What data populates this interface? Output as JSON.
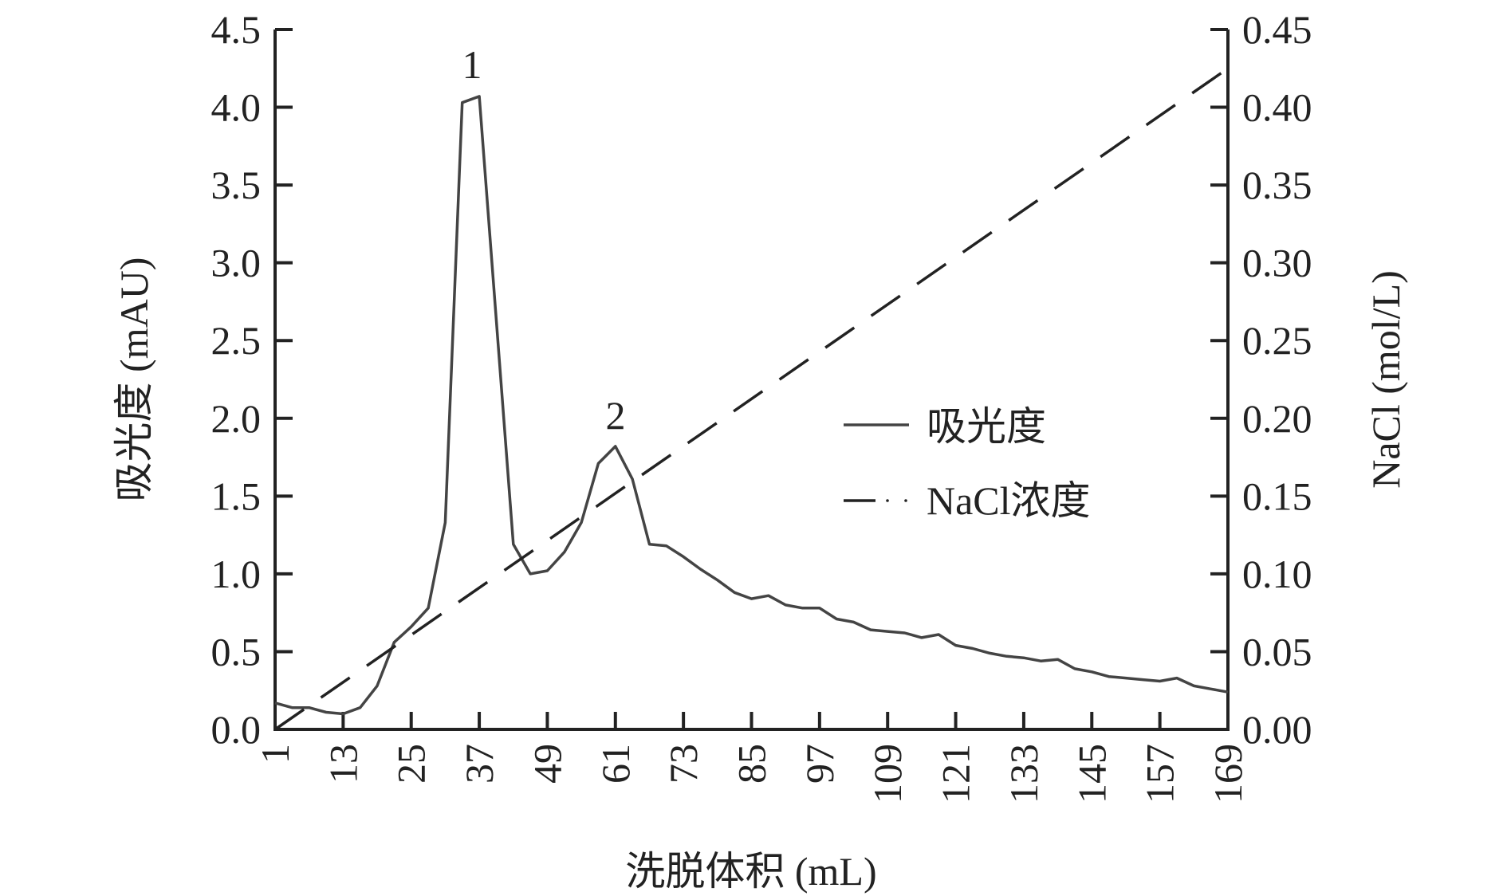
{
  "chart_data": {
    "type": "line",
    "title": "",
    "xlabel": "洗脱体积 (mL)",
    "ylabel": "吸光度 (mAU)",
    "y2label": "NaCl (mol/L)",
    "xlim": [
      1,
      169
    ],
    "ylim": [
      0,
      4.5
    ],
    "y2lim": [
      0,
      0.45
    ],
    "xticks": [
      1,
      13,
      25,
      37,
      49,
      61,
      73,
      85,
      97,
      109,
      121,
      133,
      145,
      157,
      169
    ],
    "yticks": [
      "0.0",
      "0.5",
      "1.0",
      "1.5",
      "2.0",
      "2.5",
      "3.0",
      "3.5",
      "4.0",
      "4.5"
    ],
    "y2ticks": [
      "0.00",
      "0.05",
      "0.10",
      "0.15",
      "0.20",
      "0.25",
      "0.30",
      "0.35",
      "0.40",
      "0.45"
    ],
    "grid": false,
    "legend": {
      "placement": "center-right",
      "entries": [
        "吸光度",
        "NaCl浓度"
      ]
    },
    "annotations": [
      {
        "text": "1",
        "x": 36,
        "y": 4.25
      },
      {
        "text": "2",
        "x": 61,
        "y": 2.0
      }
    ],
    "series": [
      {
        "name": "吸光度",
        "axis": "left",
        "style": "solid",
        "color": "#444444",
        "x": [
          1,
          4,
          7,
          10,
          13,
          16,
          19,
          22,
          25,
          28,
          31,
          34,
          37,
          43,
          46,
          49,
          52,
          55,
          58,
          61,
          64,
          67,
          70,
          73,
          76,
          79,
          82,
          85,
          88,
          91,
          94,
          97,
          100,
          103,
          106,
          109,
          112,
          115,
          118,
          121,
          124,
          127,
          130,
          133,
          136,
          139,
          142,
          145,
          148,
          151,
          154,
          157,
          160,
          163,
          166,
          169
        ],
        "y": [
          0.17,
          0.14,
          0.14,
          0.11,
          0.1,
          0.14,
          0.28,
          0.56,
          0.66,
          0.78,
          1.33,
          4.03,
          4.07,
          1.19,
          1.0,
          1.02,
          1.14,
          1.33,
          1.71,
          1.82,
          1.61,
          1.19,
          1.18,
          1.11,
          1.03,
          0.96,
          0.88,
          0.84,
          0.86,
          0.8,
          0.78,
          0.78,
          0.71,
          0.69,
          0.64,
          0.63,
          0.62,
          0.59,
          0.61,
          0.54,
          0.52,
          0.49,
          0.47,
          0.46,
          0.44,
          0.45,
          0.39,
          0.37,
          0.34,
          0.33,
          0.32,
          0.31,
          0.33,
          0.28,
          0.26,
          0.24
        ]
      },
      {
        "name": "NaCl浓度",
        "axis": "right",
        "style": "dashed",
        "color": "#222222",
        "x": [
          1,
          169
        ],
        "y": [
          0.0,
          0.425
        ]
      }
    ]
  }
}
